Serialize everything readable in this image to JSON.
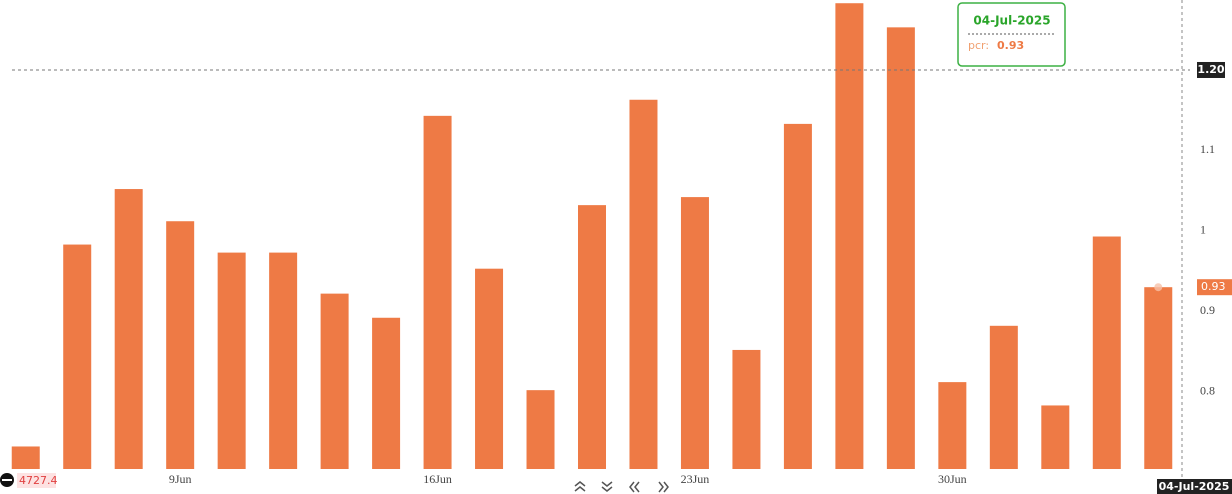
{
  "chart_data": {
    "type": "bar",
    "categories": [
      null,
      null,
      null,
      "9Jun",
      null,
      null,
      null,
      null,
      "16Jun",
      null,
      null,
      null,
      null,
      "23Jun",
      null,
      null,
      null,
      null,
      "30Jun",
      null,
      null,
      null,
      null
    ],
    "values": [
      0.732,
      0.983,
      1.052,
      1.012,
      0.973,
      0.973,
      0.922,
      0.892,
      1.143,
      0.953,
      0.802,
      1.032,
      1.163,
      1.042,
      0.852,
      1.133,
      1.283,
      1.253,
      0.812,
      0.882,
      0.783,
      0.993,
      0.93
    ],
    "color": "#ee7a45",
    "ylim": [
      0.704,
      1.287
    ],
    "yticks": [
      0.8,
      0.9,
      1,
      1.1,
      1.2
    ],
    "tooltip": {
      "date": "04-Jul-2025",
      "label": "pcr:"
    },
    "crosshair": {
      "y": {
        "value": 1.2,
        "label": "1.20"
      },
      "x_label": "04-Jul-2025"
    },
    "left_marker": 4727.4
  }
}
